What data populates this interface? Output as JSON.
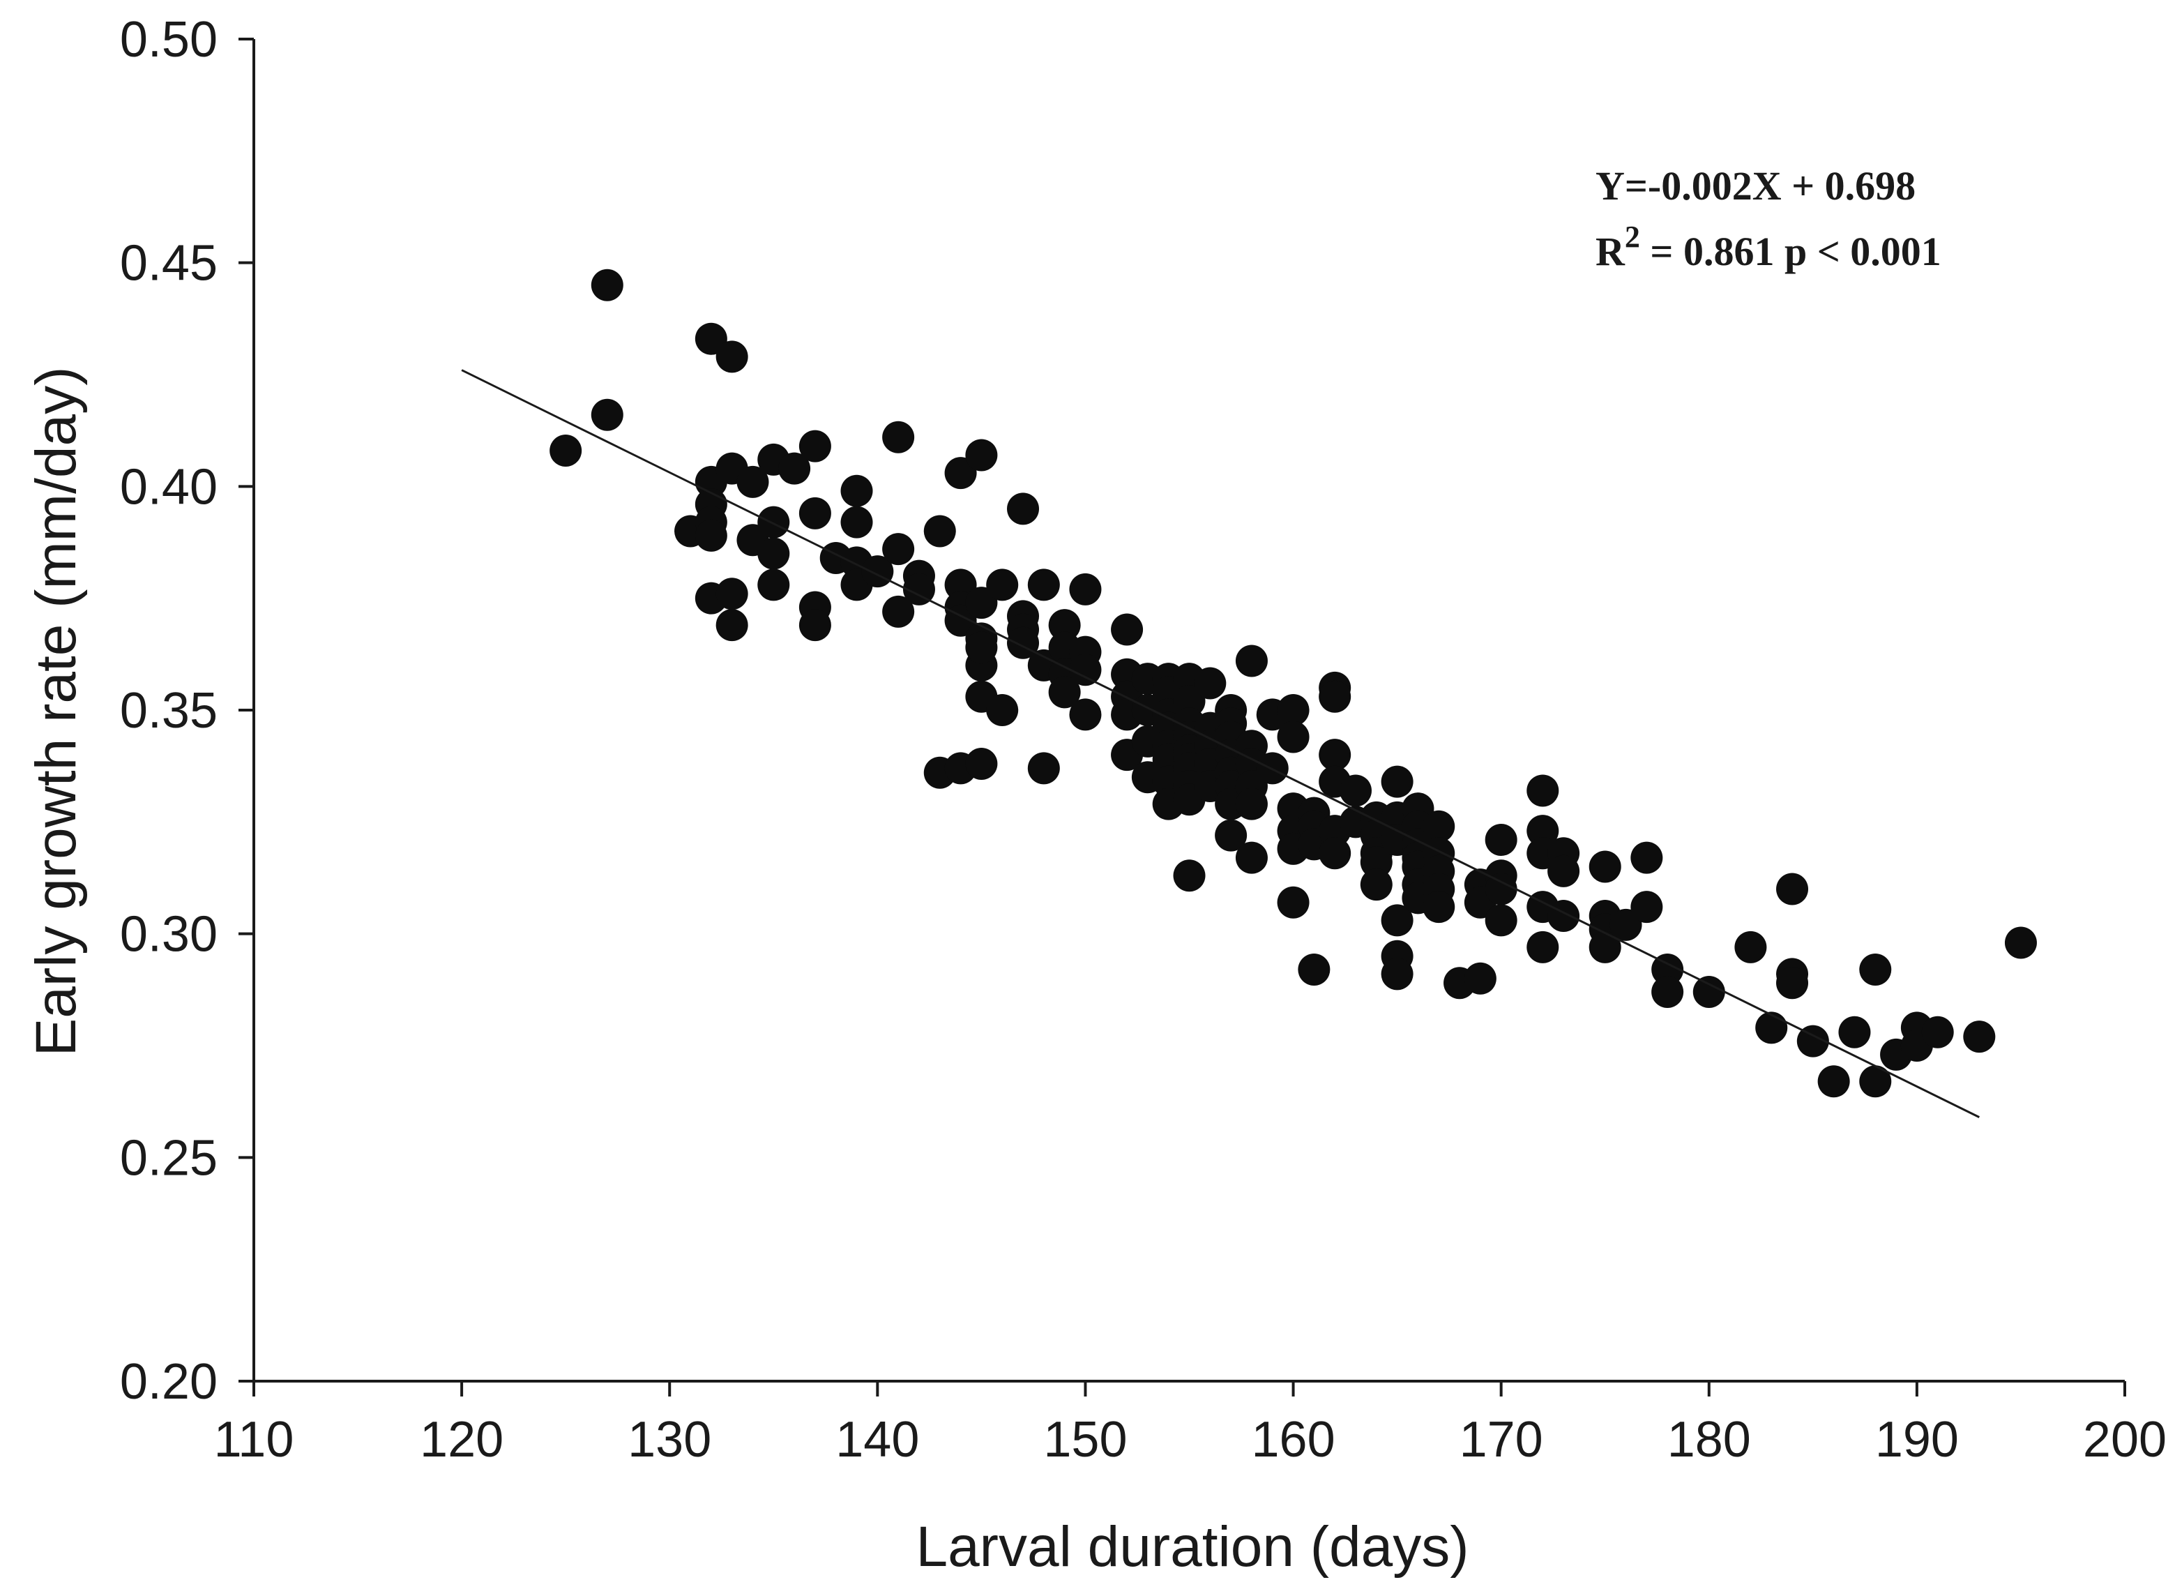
{
  "chart_data": {
    "type": "scatter",
    "xlabel": "Larval duration (days)",
    "ylabel": "Early growth rate (mm/day)",
    "xlim": [
      110,
      200
    ],
    "ylim": [
      0.2,
      0.5
    ],
    "x_ticks": [
      "110",
      "120",
      "130",
      "140",
      "150",
      "160",
      "170",
      "180",
      "190",
      "200"
    ],
    "y_ticks": [
      "0.20",
      "0.25",
      "0.30",
      "0.35",
      "0.40",
      "0.45",
      "0.50"
    ],
    "x_tick_values": [
      110,
      120,
      130,
      140,
      150,
      160,
      170,
      180,
      190,
      200
    ],
    "y_tick_values": [
      0.2,
      0.25,
      0.3,
      0.35,
      0.4,
      0.45,
      0.5
    ],
    "annotation": {
      "equation": "Y=-0.002X + 0.698",
      "r_label": "R",
      "r_sup": "2",
      "r_stats": " = 0.861  p < 0.001"
    },
    "regression_line": {
      "x": [
        120,
        193
      ],
      "y": [
        0.426,
        0.259
      ]
    },
    "points": {
      "x": [
        125,
        127,
        127,
        131,
        132,
        132,
        132,
        132,
        132,
        132,
        133,
        133,
        133,
        133,
        134,
        134,
        135,
        135,
        135,
        135,
        136,
        137,
        137,
        137,
        137,
        138,
        139,
        139,
        139,
        139,
        140,
        141,
        141,
        141,
        142,
        142,
        143,
        143,
        144,
        144,
        144,
        144,
        144,
        145,
        145,
        145,
        145,
        145,
        145,
        145,
        146,
        146,
        147,
        147,
        147,
        147,
        148,
        148,
        148,
        149,
        149,
        149,
        149,
        150,
        150,
        150,
        150,
        152,
        152,
        152,
        152,
        152,
        153,
        153,
        153,
        153,
        154,
        154,
        154,
        154,
        154,
        154,
        154,
        154,
        155,
        155,
        155,
        155,
        155,
        155,
        155,
        155,
        155,
        155,
        156,
        156,
        156,
        156,
        156,
        157,
        157,
        157,
        157,
        157,
        157,
        157,
        157,
        158,
        158,
        158,
        158,
        158,
        158,
        159,
        159,
        160,
        160,
        160,
        160,
        160,
        160,
        161,
        161,
        161,
        161,
        162,
        162,
        162,
        162,
        162,
        162,
        163,
        163,
        164,
        164,
        164,
        164,
        164,
        165,
        165,
        165,
        165,
        165,
        165,
        166,
        166,
        166,
        166,
        166,
        166,
        166,
        167,
        167,
        167,
        167,
        167,
        168,
        169,
        169,
        169,
        170,
        170,
        170,
        170,
        172,
        172,
        172,
        172,
        172,
        173,
        173,
        173,
        175,
        175,
        175,
        175,
        176,
        177,
        177,
        178,
        178,
        180,
        182,
        183,
        184,
        184,
        184,
        185,
        186,
        187,
        188,
        188,
        189,
        190,
        190,
        191,
        193,
        195
      ],
      "y": [
        0.408,
        0.445,
        0.416,
        0.39,
        0.433,
        0.401,
        0.396,
        0.392,
        0.389,
        0.375,
        0.429,
        0.404,
        0.376,
        0.369,
        0.401,
        0.388,
        0.406,
        0.392,
        0.385,
        0.378,
        0.404,
        0.409,
        0.394,
        0.373,
        0.369,
        0.384,
        0.399,
        0.392,
        0.383,
        0.378,
        0.381,
        0.411,
        0.386,
        0.372,
        0.38,
        0.377,
        0.39,
        0.336,
        0.403,
        0.378,
        0.373,
        0.37,
        0.337,
        0.407,
        0.374,
        0.366,
        0.36,
        0.353,
        0.338,
        0.364,
        0.378,
        0.35,
        0.395,
        0.371,
        0.368,
        0.365,
        0.378,
        0.36,
        0.337,
        0.369,
        0.364,
        0.358,
        0.354,
        0.377,
        0.363,
        0.359,
        0.349,
        0.368,
        0.358,
        0.353,
        0.349,
        0.34,
        0.357,
        0.35,
        0.343,
        0.335,
        0.357,
        0.354,
        0.349,
        0.346,
        0.342,
        0.339,
        0.334,
        0.329,
        0.357,
        0.352,
        0.347,
        0.344,
        0.341,
        0.339,
        0.337,
        0.333,
        0.33,
        0.313,
        0.356,
        0.346,
        0.342,
        0.338,
        0.333,
        0.35,
        0.347,
        0.344,
        0.34,
        0.336,
        0.333,
        0.329,
        0.322,
        0.361,
        0.342,
        0.338,
        0.333,
        0.329,
        0.317,
        0.349,
        0.337,
        0.35,
        0.344,
        0.328,
        0.323,
        0.319,
        0.307,
        0.327,
        0.324,
        0.32,
        0.292,
        0.355,
        0.353,
        0.34,
        0.334,
        0.323,
        0.318,
        0.332,
        0.325,
        0.326,
        0.322,
        0.318,
        0.316,
        0.311,
        0.334,
        0.326,
        0.321,
        0.303,
        0.295,
        0.291,
        0.328,
        0.324,
        0.32,
        0.317,
        0.315,
        0.311,
        0.308,
        0.324,
        0.318,
        0.314,
        0.31,
        0.306,
        0.289,
        0.311,
        0.307,
        0.29,
        0.321,
        0.313,
        0.31,
        0.303,
        0.332,
        0.323,
        0.318,
        0.306,
        0.297,
        0.318,
        0.314,
        0.304,
        0.315,
        0.304,
        0.301,
        0.297,
        0.302,
        0.317,
        0.306,
        0.292,
        0.287,
        0.287,
        0.297,
        0.279,
        0.31,
        0.291,
        0.289,
        0.276,
        0.267,
        0.278,
        0.292,
        0.267,
        0.273,
        0.279,
        0.275,
        0.278,
        0.277,
        0.298
      ]
    }
  }
}
